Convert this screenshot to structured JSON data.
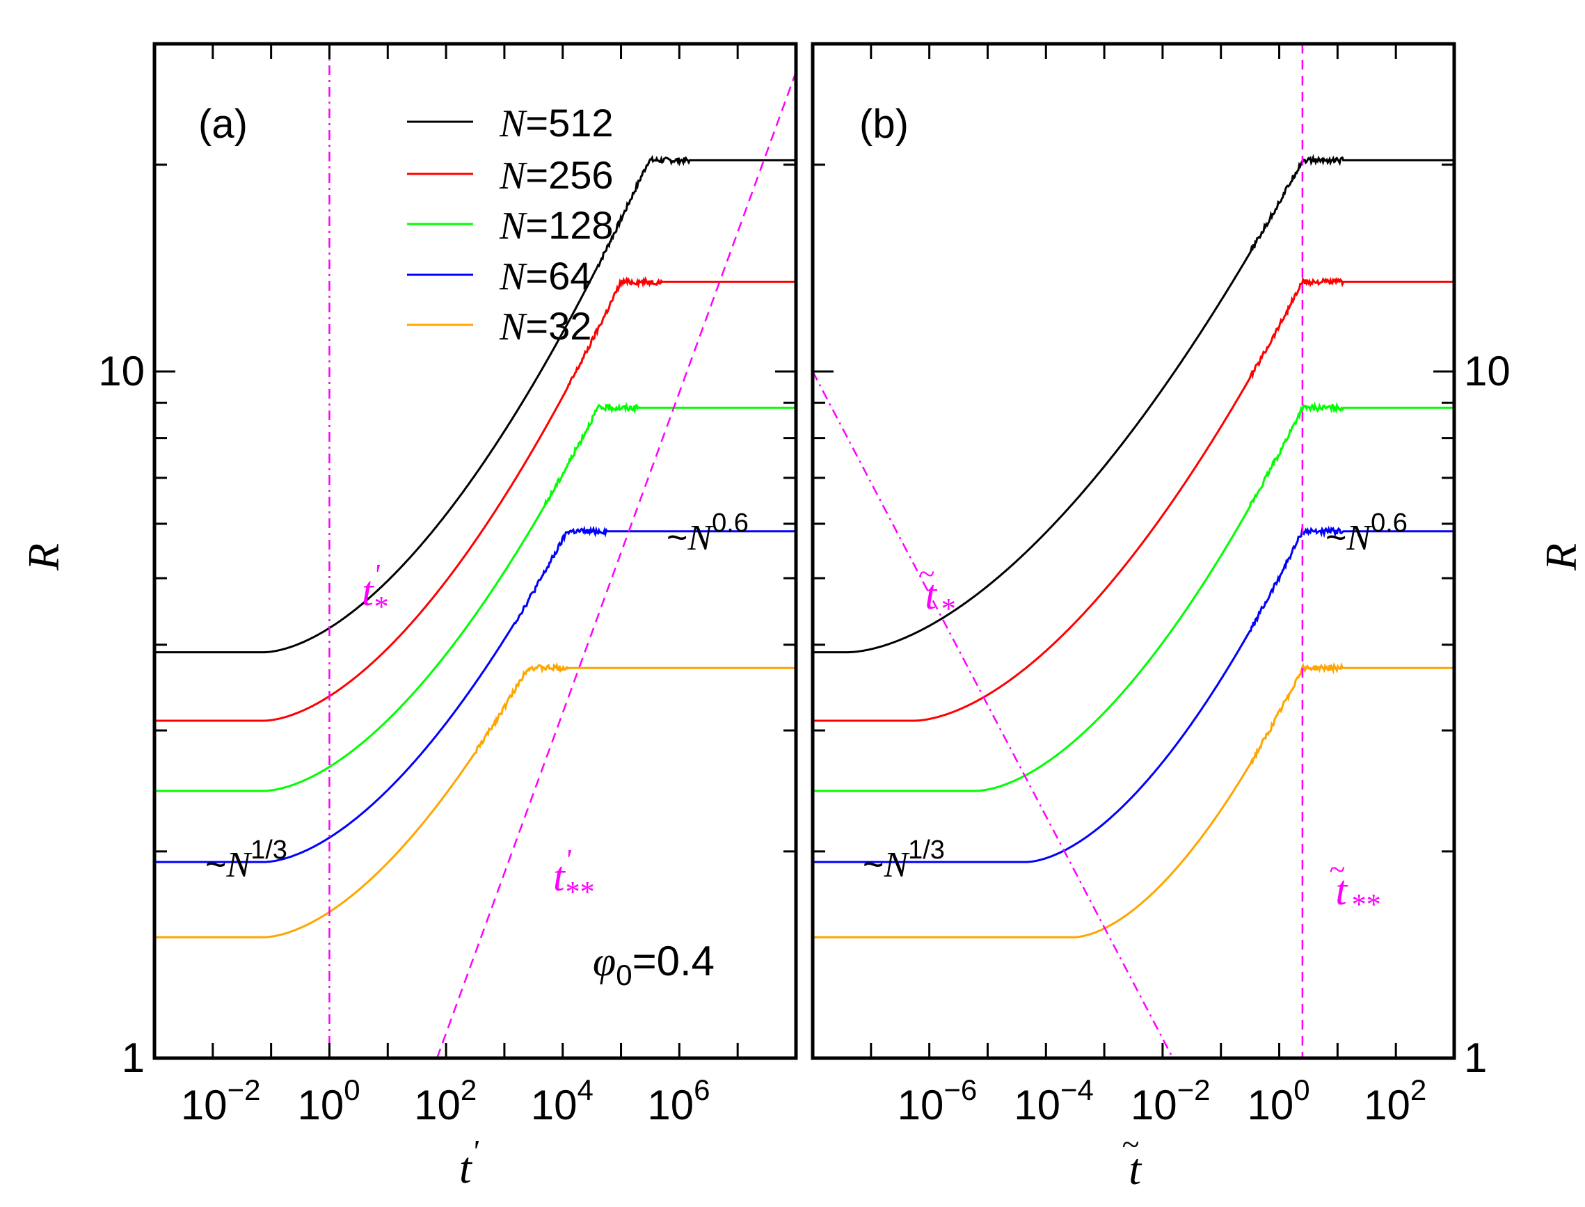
{
  "chart_data": [
    {
      "panel": "a",
      "panel_label": "(a)",
      "type": "line",
      "xscale": "log",
      "yscale": "log",
      "xlim": [
        0.001,
        100000000
      ],
      "ylim": [
        1,
        30
      ],
      "xlabel": "t'",
      "ylabel": "R",
      "x_ticks": [
        {
          "v": 0.01,
          "base": "10",
          "exp": "−2"
        },
        {
          "v": 1,
          "base": "10",
          "exp": "0"
        },
        {
          "v": 100,
          "base": "10",
          "exp": "2"
        },
        {
          "v": 10000,
          "base": "10",
          "exp": "4"
        },
        {
          "v": 1000000,
          "base": "10",
          "exp": "6"
        }
      ],
      "y_ticks": [
        {
          "v": 1,
          "label": "1"
        },
        {
          "v": 10,
          "label": "10"
        }
      ],
      "series": [
        {
          "name": "N=512",
          "color": "#000000",
          "plateau_low": 3.9,
          "plateau_high": 20.3,
          "knee_x": 3,
          "sat_x": 300000,
          "noise": true
        },
        {
          "name": "N=256",
          "color": "#ff0000",
          "plateau_low": 3.1,
          "plateau_high": 13.5,
          "knee_x": 3,
          "sat_x": 100000,
          "noise": true
        },
        {
          "name": "N=128",
          "color": "#00ff00",
          "plateau_low": 2.45,
          "plateau_high": 8.85,
          "knee_x": 3,
          "sat_x": 40000,
          "noise": true
        },
        {
          "name": "N=64",
          "color": "#0000ff",
          "plateau_low": 1.93,
          "plateau_high": 5.85,
          "knee_x": 3,
          "sat_x": 12000,
          "noise": true
        },
        {
          "name": "N=32",
          "color": "#ffa500",
          "plateau_low": 1.5,
          "plateau_high": 3.7,
          "knee_x": 3,
          "sat_x": 2500,
          "noise": true
        }
      ],
      "reference_lines": [
        {
          "name": "t*",
          "style": "dashdot",
          "color": "#ff00ff",
          "x": 1
        },
        {
          "name": "t**",
          "style": "dashed",
          "color": "#ff00ff",
          "points": [
            [
              70,
              1
            ],
            [
              150000000,
              30
            ]
          ]
        }
      ],
      "annotations": {
        "t_star": {
          "text": "t",
          "sup": "'",
          "sub": "*"
        },
        "t_starstar": {
          "text": "t",
          "sup": "'",
          "sub": "**"
        },
        "n_low": {
          "prefix": "~N",
          "exp": "1/3"
        },
        "n_high": {
          "prefix": "~N",
          "exp": "0.6"
        },
        "phi": {
          "sym": "φ",
          "sub": "0",
          "rest": "=0.4"
        }
      },
      "legend": {
        "placement": "top-center",
        "entries": [
          "N=512",
          "N=256",
          "N=128",
          "N=64",
          "N=32"
        ]
      }
    },
    {
      "panel": "b",
      "panel_label": "(b)",
      "type": "line",
      "xscale": "log",
      "yscale": "log",
      "xlim": [
        1e-08,
        1000
      ],
      "ylim": [
        1,
        30
      ],
      "xlabel": "t̃",
      "ylabel": "R",
      "x_ticks": [
        {
          "v": 1e-06,
          "base": "10",
          "exp": "−6"
        },
        {
          "v": 0.0001,
          "base": "10",
          "exp": "−4"
        },
        {
          "v": 0.01,
          "base": "10",
          "exp": "−2"
        },
        {
          "v": 1,
          "base": "10",
          "exp": "0"
        },
        {
          "v": 100,
          "base": "10",
          "exp": "2"
        }
      ],
      "y_ticks": [
        {
          "v": 1,
          "label": "1"
        },
        {
          "v": 10,
          "label": "10"
        }
      ],
      "series": [
        {
          "name": "N=512",
          "color": "#000000",
          "plateau_low": 3.9,
          "plateau_high": 20.3,
          "knee_x": 1.6e-06,
          "sat_x": 2.5,
          "noise": true
        },
        {
          "name": "N=256",
          "color": "#ff0000",
          "plateau_low": 3.1,
          "plateau_high": 13.5,
          "knee_x": 2.2e-05,
          "sat_x": 2.5,
          "noise": true
        },
        {
          "name": "N=128",
          "color": "#00ff00",
          "plateau_low": 2.45,
          "plateau_high": 8.85,
          "knee_x": 0.00025,
          "sat_x": 2.5,
          "noise": true
        },
        {
          "name": "N=64",
          "color": "#0000ff",
          "plateau_low": 1.93,
          "plateau_high": 5.85,
          "knee_x": 0.0018,
          "sat_x": 2.5,
          "noise": true
        },
        {
          "name": "N=32",
          "color": "#ffa500",
          "plateau_low": 1.5,
          "plateau_high": 3.7,
          "knee_x": 0.012,
          "sat_x": 2.5,
          "noise": true
        }
      ],
      "reference_lines": [
        {
          "name": "t*",
          "style": "dashdot",
          "color": "#ff00ff",
          "points": [
            [
              1e-08,
              10
            ],
            [
              0.015,
              1
            ]
          ]
        },
        {
          "name": "t**",
          "style": "dashed",
          "color": "#ff00ff",
          "x": 2.5
        }
      ],
      "annotations": {
        "t_star": {
          "text": "t̃",
          "sub": "*"
        },
        "t_starstar": {
          "text": "t̃",
          "sub": "**"
        },
        "n_low": {
          "prefix": "~N",
          "exp": "1/3"
        },
        "n_high": {
          "prefix": "~N",
          "exp": "0.6"
        }
      }
    }
  ]
}
